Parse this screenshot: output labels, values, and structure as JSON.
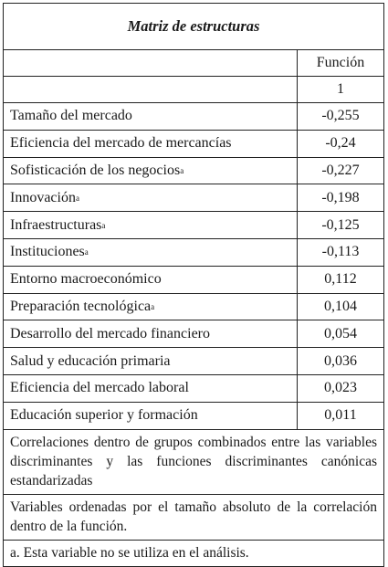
{
  "title": "Matriz de estructuras",
  "column_header": "Función",
  "column_index": "1",
  "rows": [
    {
      "label": "Tamaño del mercado",
      "sup": "",
      "value": "-0,255"
    },
    {
      "label": "Eficiencia del mercado de mercancías",
      "sup": "",
      "value": "-0,24"
    },
    {
      "label": "Sofisticación de los negocios",
      "sup": "a",
      "value": "-0,227"
    },
    {
      "label": "Innovación",
      "sup": "a",
      "value": "-0,198"
    },
    {
      "label": "Infraestructuras",
      "sup": "a",
      "value": "-0,125"
    },
    {
      "label": "Instituciones",
      "sup": "a",
      "value": "-0,113"
    },
    {
      "label": "Entorno macroeconómico",
      "sup": "",
      "value": "0,112"
    },
    {
      "label": "Preparación tecnológica",
      "sup": "a",
      "value": "0,104"
    },
    {
      "label": "Desarrollo del mercado financiero",
      "sup": "",
      "value": "0,054"
    },
    {
      "label": "Salud y educación primaria",
      "sup": "",
      "value": "0,036"
    },
    {
      "label": "Eficiencia del mercado laboral",
      "sup": "",
      "value": "0,023"
    },
    {
      "label": "Educación superior y formación",
      "sup": "",
      "value": "0,011"
    }
  ],
  "notes": [
    "Correlaciones dentro de grupos combinados entre las variables discriminantes y las funciones discriminantes canónicas estandarizadas",
    "Variables ordenadas por el tamaño absoluto de la correlación dentro de la función.",
    "a. Esta variable no se utiliza en el análisis."
  ]
}
